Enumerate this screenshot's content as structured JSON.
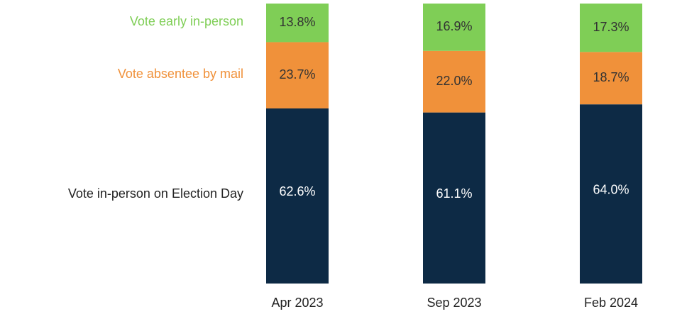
{
  "chart_data": {
    "type": "stacked_bar",
    "categories": [
      "Apr 2023",
      "Sep 2023",
      "Feb 2024"
    ],
    "series": [
      {
        "name": "Vote in-person on Election Day",
        "color": "#0d2a45",
        "values": [
          62.6,
          61.1,
          64.0
        ],
        "value_labels": [
          "62.6%",
          "61.1%",
          "64.0%"
        ]
      },
      {
        "name": "Vote absentee by mail",
        "color": "#f0913a",
        "values": [
          23.7,
          22.0,
          18.7
        ],
        "value_labels": [
          "23.7%",
          "22.0%",
          "18.7%"
        ]
      },
      {
        "name": "Vote early in-person",
        "color": "#7fce56",
        "values": [
          13.8,
          16.9,
          17.3
        ],
        "value_labels": [
          "13.8%",
          "16.9%",
          "17.3%"
        ]
      }
    ]
  }
}
